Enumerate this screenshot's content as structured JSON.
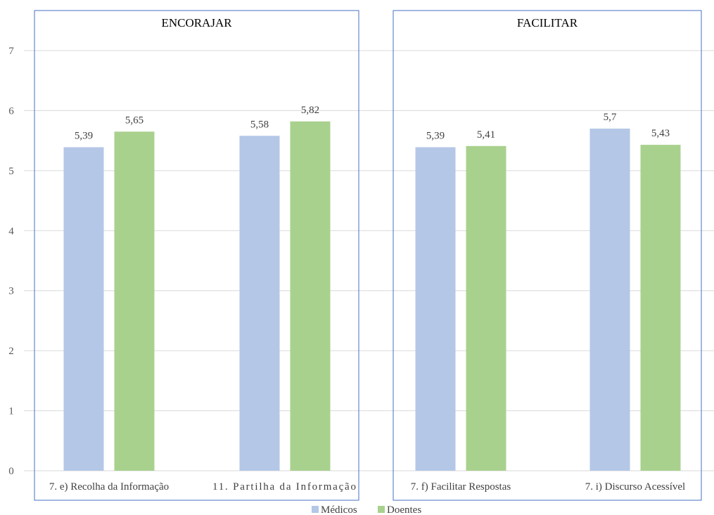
{
  "chart_data": {
    "type": "bar",
    "ylim": [
      0,
      7
    ],
    "yticks": [
      "0",
      "1",
      "2",
      "3",
      "4",
      "5",
      "6",
      "7"
    ],
    "grid": true,
    "legend_placement": "bottom-center",
    "groups": [
      {
        "title": "ENCORAJAR",
        "categories": [
          "7. e) Recolha da Informação",
          "11. Partilha da Informação"
        ]
      },
      {
        "title": "FACILITAR",
        "categories": [
          "7. f) Facilitar Respostas",
          "7. i) Discurso Acessível"
        ]
      }
    ],
    "series": [
      {
        "name": "Médicos",
        "color": "#b4c7e7",
        "values": [
          5.39,
          5.58,
          5.39,
          5.7
        ],
        "labels": [
          "5,39",
          "5,58",
          "5,39",
          "5,7"
        ]
      },
      {
        "name": "Doentes",
        "color": "#a9d18e",
        "values": [
          5.65,
          5.82,
          5.41,
          5.43
        ],
        "labels": [
          "5,65",
          "5,82",
          "5,41",
          "5,43"
        ]
      }
    ],
    "colors": {
      "panel_border": "#4472c4",
      "gridline": "#d9d9d9"
    }
  }
}
